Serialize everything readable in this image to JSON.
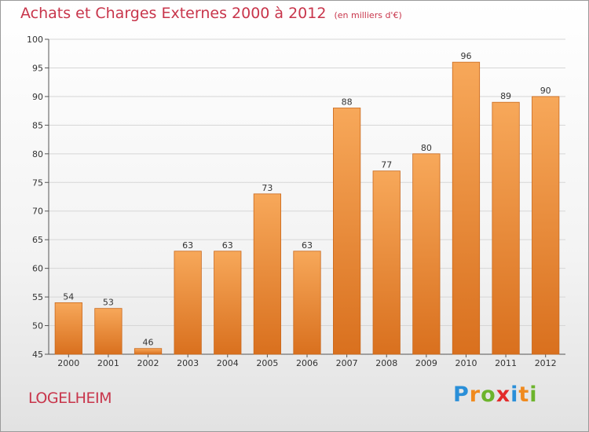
{
  "header": {
    "title": "Achats et Charges Externes 2000 à 2012",
    "subtitle": "(en milliers d'€)"
  },
  "footer": {
    "place": "LOGELHEIM"
  },
  "logo": {
    "letters": [
      {
        "ch": "P",
        "color": "#2a8fd8"
      },
      {
        "ch": "r",
        "color": "#f08a1e"
      },
      {
        "ch": "o",
        "color": "#6cb42c"
      },
      {
        "ch": "x",
        "color": "#e32a2a"
      },
      {
        "ch": "i",
        "color": "#2a8fd8"
      },
      {
        "ch": "t",
        "color": "#f08a1e"
      },
      {
        "ch": "i",
        "color": "#6cb42c"
      }
    ]
  },
  "colors": {
    "bar_light": "#f7a85a",
    "bar_dark": "#d9701e",
    "bar_edge": "#c9681c",
    "accent_text": "#c8354b"
  },
  "chart_data": {
    "type": "bar",
    "title": "Achats et Charges Externes 2000 à 2012",
    "subtitle": "(en milliers d'€)",
    "categories": [
      "2000",
      "2001",
      "2002",
      "2003",
      "2004",
      "2005",
      "2006",
      "2007",
      "2008",
      "2009",
      "2010",
      "2011",
      "2012"
    ],
    "values": [
      54,
      53,
      46,
      63,
      63,
      73,
      63,
      88,
      77,
      80,
      96,
      89,
      90
    ],
    "ylim": [
      45,
      100
    ],
    "yticks": [
      45,
      50,
      55,
      60,
      65,
      70,
      75,
      80,
      85,
      90,
      95,
      100
    ],
    "grid": true,
    "data_labels": true
  }
}
